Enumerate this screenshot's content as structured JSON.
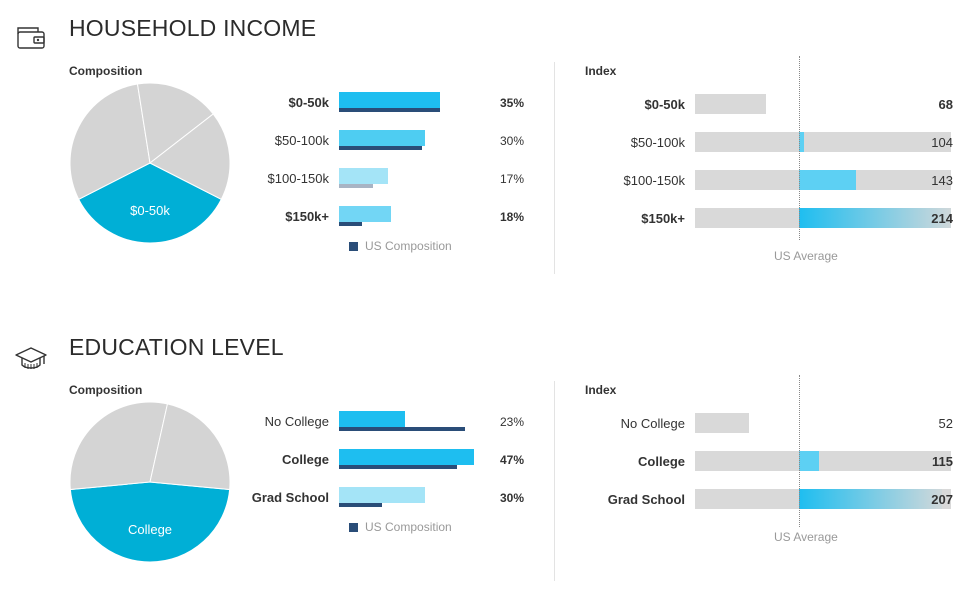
{
  "sections": [
    {
      "title": "HOUSEHOLD INCOME",
      "icon": "wallet-icon",
      "composition_label": "Composition",
      "index_label": "Index",
      "pie_label": "$0-50k",
      "legend_label": "US Composition",
      "avg_label": "US Average",
      "rows": [
        {
          "label": "$0-50k",
          "pct": "35%",
          "value": 35,
          "us": 35,
          "index": 68,
          "index_text": "68",
          "bold": true
        },
        {
          "label": "$50-100k",
          "pct": "30%",
          "value": 30,
          "us": 29,
          "index": 104,
          "index_text": "104",
          "bold": false
        },
        {
          "label": "$100-150k",
          "pct": "17%",
          "value": 17,
          "us": 12,
          "index": 143,
          "index_text": "143",
          "bold": false
        },
        {
          "label": "$150k+",
          "pct": "18%",
          "value": 18,
          "us": 8,
          "index": 214,
          "index_text": "214",
          "bold": true
        }
      ]
    },
    {
      "title": "EDUCATION LEVEL",
      "icon": "graduation-cap-icon",
      "composition_label": "Composition",
      "index_label": "Index",
      "pie_label": "College",
      "legend_label": "US Composition",
      "avg_label": "US Average",
      "rows": [
        {
          "label": "No College",
          "pct": "23%",
          "value": 23,
          "us": 44,
          "index": 52,
          "index_text": "52",
          "bold": false
        },
        {
          "label": "College",
          "pct": "47%",
          "value": 47,
          "us": 41,
          "index": 115,
          "index_text": "115",
          "bold": true
        },
        {
          "label": "Grad School",
          "pct": "30%",
          "value": 30,
          "us": 15,
          "index": 207,
          "index_text": "207",
          "bold": true
        }
      ]
    }
  ],
  "chart_data": [
    {
      "type": "bar",
      "title": "HOUSEHOLD INCOME",
      "categories": [
        "$0-50k",
        "$50-100k",
        "$100-150k",
        "$150k+"
      ],
      "series": [
        {
          "name": "Composition",
          "values": [
            35,
            30,
            17,
            18
          ]
        },
        {
          "name": "US Composition",
          "values": [
            35,
            29,
            12,
            8
          ]
        },
        {
          "name": "Index",
          "values": [
            68,
            104,
            143,
            214
          ]
        }
      ],
      "highlight": "$0-50k",
      "reference": {
        "label": "US Average",
        "value": 100
      },
      "legend": "US Composition"
    },
    {
      "type": "bar",
      "title": "EDUCATION LEVEL",
      "categories": [
        "No College",
        "College",
        "Grad School"
      ],
      "series": [
        {
          "name": "Composition",
          "values": [
            23,
            47,
            30
          ]
        },
        {
          "name": "US Composition",
          "values": [
            44,
            41,
            15
          ]
        },
        {
          "name": "Index",
          "values": [
            52,
            115,
            207
          ]
        }
      ],
      "highlight": "College",
      "reference": {
        "label": "US Average",
        "value": 100
      },
      "legend": "US Composition"
    }
  ],
  "colors": {
    "highlight_bar": "#1ebef0",
    "bar_shades": [
      "#1ebef0",
      "#4ecdf2",
      "#a4e4f7",
      "#72d6f5"
    ],
    "us_bar_dark": "#2a4d78",
    "us_bar_light": "#a8b4c4",
    "pie_highlight": "#00afd6",
    "pie_grey": "#d4d4d4",
    "index_bg": "#d9d9d9",
    "index_fill": "#1ebef0"
  }
}
